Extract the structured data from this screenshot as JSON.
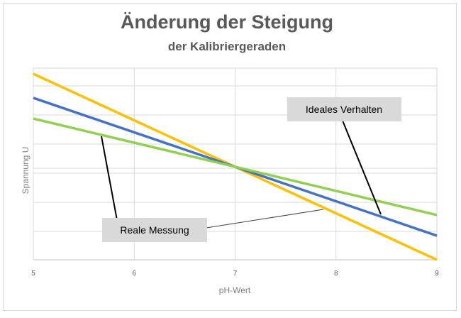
{
  "chart_data": {
    "type": "line",
    "title": "Änderung der Steigung",
    "subtitle": "der Kalibriergeraden",
    "xlabel": "pH-Wert",
    "ylabel": "Spannung U",
    "xlim": [
      5,
      9
    ],
    "x_ticks": [
      "5",
      "6",
      "7",
      "8",
      "9"
    ],
    "grid": true,
    "series": [
      {
        "color": "#FFC000",
        "x": [
          5,
          9
        ],
        "y": [
          0.135,
          -0.135
        ]
      },
      {
        "color": "#4472C4",
        "x": [
          5,
          9
        ],
        "y": [
          0.1,
          -0.1
        ]
      },
      {
        "color": "#92D050",
        "x": [
          5,
          9
        ],
        "y": [
          0.07,
          -0.07
        ]
      }
    ],
    "annotations": [
      {
        "text": "Ideales Verhalten"
      },
      {
        "text": "Reale Messung"
      }
    ]
  }
}
